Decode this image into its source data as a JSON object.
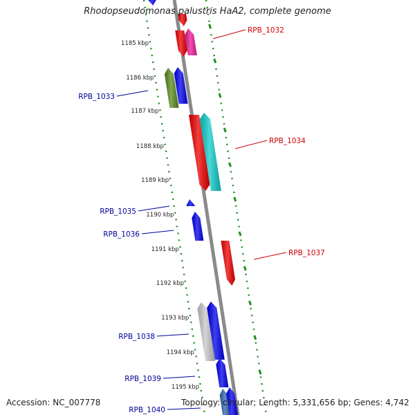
{
  "title": "Rhodopseudomonas palustris HaA2, complete genome",
  "footer": {
    "accession": "Accession: NC_007778",
    "summary": "Topology: circular; Length: 5,331,656 bp; Genes: 4,742"
  },
  "colors": {
    "background": "#ffffff",
    "backbone": "#8a8a8a",
    "tick": "#1f8f1f",
    "forward_label": "#cc0000",
    "reverse_label": "#000099",
    "position_text": "#222222"
  },
  "scale": {
    "ticks": [
      {
        "label": "1185 kbp",
        "kbp": 1185
      },
      {
        "label": "1186 kbp",
        "kbp": 1186
      },
      {
        "label": "1187 kbp",
        "kbp": 1187
      },
      {
        "label": "1188 kbp",
        "kbp": 1188
      },
      {
        "label": "1189 kbp",
        "kbp": 1189
      },
      {
        "label": "1190 kbp",
        "kbp": 1190
      },
      {
        "label": "1191 kbp",
        "kbp": 1191
      },
      {
        "label": "1192 kbp",
        "kbp": 1192
      },
      {
        "label": "1193 kbp",
        "kbp": 1193
      },
      {
        "label": "1194 kbp",
        "kbp": 1194
      },
      {
        "label": "1195 kbp",
        "kbp": 1195
      }
    ]
  },
  "genes": [
    {
      "label": "RPB_1032",
      "strand": "forward"
    },
    {
      "label": "RPB_1033",
      "strand": "reverse"
    },
    {
      "label": "RPB_1034",
      "strand": "forward"
    },
    {
      "label": "RPB_1035",
      "strand": "reverse"
    },
    {
      "label": "RPB_1036",
      "strand": "reverse"
    },
    {
      "label": "RPB_1037",
      "strand": "forward"
    },
    {
      "label": "RPB_1038",
      "strand": "reverse"
    },
    {
      "label": "RPB_1039",
      "strand": "reverse"
    },
    {
      "label": "RPB_1040",
      "strand": "reverse"
    }
  ]
}
